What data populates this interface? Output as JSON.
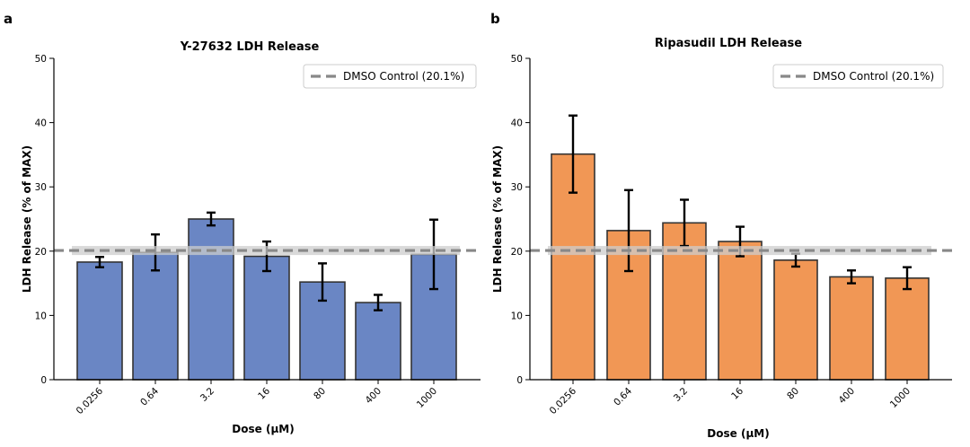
{
  "chart_data": [
    {
      "type": "bar",
      "panel_label": "a",
      "title": "Y-27632 LDH Release",
      "xlabel": "Dose (μM)",
      "ylabel": "LDH Release (% of MAX)",
      "ylim": [
        0,
        50
      ],
      "yticks": [
        "0",
        "10",
        "20",
        "30",
        "40",
        "50"
      ],
      "categories": [
        "0.0256",
        "0.64",
        "3.2",
        "16",
        "80",
        "400",
        "1000"
      ],
      "values": [
        18.3,
        19.8,
        25.0,
        19.2,
        15.2,
        12.0,
        19.5
      ],
      "errors": [
        0.8,
        2.8,
        1.0,
        2.3,
        2.9,
        1.2,
        5.4
      ],
      "bar_color": "#6a86c4",
      "reference_line": {
        "label": "DMSO Control (20.1%)",
        "value": 20.1,
        "band": [
          19.4,
          20.8
        ],
        "color": "#888888"
      },
      "legend_position": "top-right",
      "grid": false
    },
    {
      "type": "bar",
      "panel_label": "b",
      "title": "Ripasudil LDH Release",
      "xlabel": "Dose (μM)",
      "ylabel": "LDH Release (% of MAX)",
      "ylim": [
        0,
        50
      ],
      "yticks": [
        "0",
        "10",
        "20",
        "30",
        "40",
        "50"
      ],
      "categories": [
        "0.0256",
        "0.64",
        "3.2",
        "16",
        "80",
        "400",
        "1000"
      ],
      "values": [
        35.1,
        23.2,
        24.4,
        21.5,
        18.6,
        16.0,
        15.8
      ],
      "errors": [
        6.0,
        6.3,
        3.6,
        2.3,
        1.0,
        1.0,
        1.7
      ],
      "bar_color": "#f19755",
      "reference_line": {
        "label": "DMSO Control (20.1%)",
        "value": 20.1,
        "band": [
          19.4,
          20.8
        ],
        "color": "#888888"
      },
      "legend_position": "top-right",
      "grid": false
    }
  ]
}
